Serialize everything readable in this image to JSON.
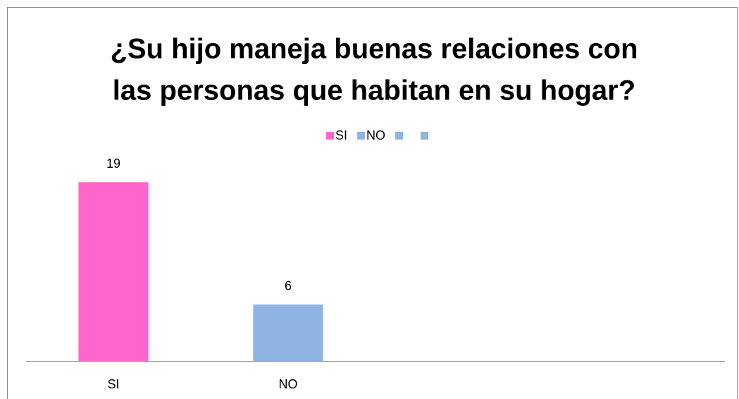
{
  "chart_data": {
    "type": "bar",
    "title": [
      "¿Su hijo maneja buenas relaciones con",
      "las personas que habitan en su hogar?"
    ],
    "categories": [
      "SI",
      "NO",
      null,
      null
    ],
    "values": [
      19,
      6,
      null,
      null
    ],
    "colors": [
      "#ff66cc",
      "#8db4e2",
      "#8db4e2",
      "#8db4e2"
    ],
    "ylim": [
      0,
      20
    ],
    "legend": "top",
    "data_labels": true
  }
}
